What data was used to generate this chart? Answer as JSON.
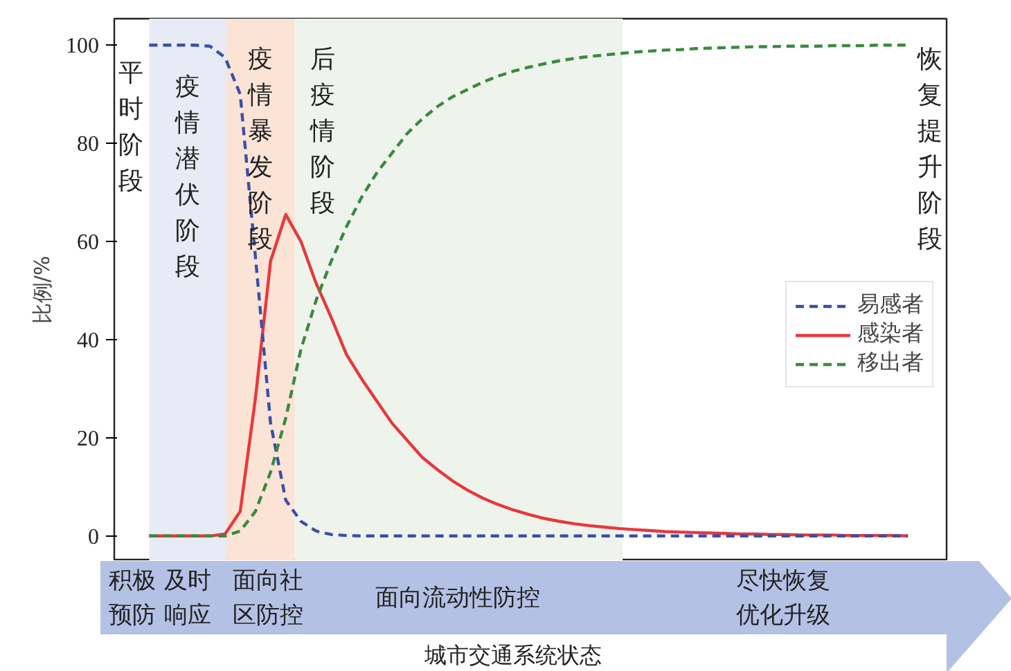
{
  "chart_data": {
    "type": "line",
    "xlabel": "城市交通系统状态",
    "ylabel": "比例/%",
    "categories": [
      null,
      null,
      null,
      null,
      null,
      null,
      null,
      null,
      null,
      null,
      null,
      null,
      null,
      null,
      null,
      null,
      null,
      null,
      null,
      null,
      null,
      null,
      null,
      null,
      null,
      null,
      null,
      null,
      null,
      null,
      null,
      null,
      null,
      null,
      null,
      null,
      null,
      null,
      null,
      null,
      null,
      null,
      null,
      null,
      null,
      null,
      null,
      null,
      null,
      null,
      null
    ],
    "ylim": [
      -5.1,
      105.4
    ],
    "yticks": [
      0,
      20,
      40,
      60,
      80,
      100
    ],
    "tick_labels": "y",
    "grid": false,
    "legend": "right",
    "series": [
      {
        "name": "易感者",
        "color": "#3a50a8",
        "line_style": "dashed",
        "values": [
          100,
          100,
          100,
          100,
          99.8,
          97.5,
          90,
          57,
          23,
          7.3,
          3,
          1,
          0.3,
          0.1,
          0,
          0,
          0,
          0,
          0,
          0,
          0,
          0,
          0,
          0,
          0,
          0,
          0,
          0,
          0,
          0,
          0,
          0,
          0,
          0,
          0,
          0,
          0,
          0,
          0,
          0,
          0,
          0,
          0,
          0,
          0,
          0,
          0,
          0,
          0,
          0,
          0
        ]
      },
      {
        "name": "感染者",
        "color": "#e8383d",
        "line_style": "solid",
        "values": [
          0,
          0,
          0,
          0,
          0,
          0.4,
          5,
          28,
          56,
          65.5,
          60,
          51.5,
          44.5,
          37,
          32,
          27.5,
          23,
          19.5,
          16,
          13.5,
          11.2,
          9.3,
          7.7,
          6.4,
          5.3,
          4.4,
          3.6,
          3,
          2.5,
          2.1,
          1.8,
          1.5,
          1.3,
          1.1,
          0.9,
          0.8,
          0.7,
          0.6,
          0.5,
          0.4,
          0.4,
          0.3,
          0.3,
          0.2,
          0.2,
          0.2,
          0.1,
          0.1,
          0.1,
          0.1,
          0
        ]
      },
      {
        "name": "移出者",
        "color": "#3a8a3e",
        "line_style": "dashed",
        "values": [
          0,
          0,
          0,
          0,
          0,
          0,
          1,
          5,
          13,
          24,
          38,
          48,
          56,
          63,
          69,
          74,
          78,
          82,
          85,
          87.5,
          89.5,
          91,
          92.5,
          93.7,
          94.7,
          95.5,
          96.2,
          96.8,
          97.3,
          97.7,
          98,
          98.3,
          98.6,
          98.8,
          99,
          99.1,
          99.3,
          99.4,
          99.5,
          99.6,
          99.7,
          99.7,
          99.8,
          99.8,
          99.8,
          99.9,
          99.9,
          99.9,
          100,
          100,
          100
        ]
      }
    ],
    "annotations": [
      "平时阶段",
      "疫情潜伏阶段",
      "疫情暴发阶段",
      "后疫情阶段",
      "恢复提升阶段",
      "积极预防",
      "及时响应",
      "面向社区防控",
      "面向流动性防控",
      "尽快恢复优化升级"
    ]
  }
}
